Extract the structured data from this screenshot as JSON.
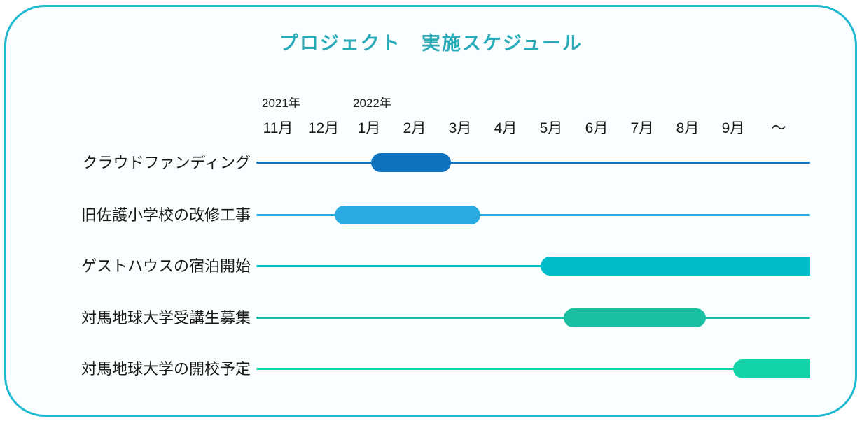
{
  "title": "プロジェクト　実施スケジュール",
  "colors": {
    "card_border": "#1eb9d0",
    "card_background": "#fbfeff",
    "title_text": "#29aab9",
    "axis_text": "#1a1a1a"
  },
  "chart_data": {
    "type": "gantt",
    "title": "プロジェクト　実施スケジュール",
    "months": [
      "11月",
      "12月",
      "1月",
      "2月",
      "3月",
      "4月",
      "5月",
      "6月",
      "7月",
      "8月",
      "9月",
      "～"
    ],
    "years": [
      {
        "label": "2021年",
        "month_index": 0
      },
      {
        "label": "2022年",
        "month_index": 2
      }
    ],
    "axis_note": "month axis runs 2021-11 through 2022-09 then continues (～)",
    "tasks": [
      {
        "label": "クラウドファンディング",
        "color": "#0e72bf",
        "start_month_idx": 2.05,
        "end_month_idx": 3.8,
        "continues": false
      },
      {
        "label": "旧佐護小学校の改修工事",
        "color": "#29abe2",
        "start_month_idx": 1.25,
        "end_month_idx": 4.45,
        "continues": false
      },
      {
        "label": "ゲストハウスの宿泊開始",
        "color": "#00bcc9",
        "start_month_idx": 5.77,
        "end_month_idx": 11.69,
        "continues": true
      },
      {
        "label": "対馬地球大学受講生募集",
        "color": "#1abfa1",
        "start_month_idx": 6.28,
        "end_month_idx": 9.4,
        "continues": false
      },
      {
        "label": "対馬地球大学の開校予定",
        "color": "#13d4a9",
        "start_month_idx": 10.0,
        "end_month_idx": 11.69,
        "continues": true
      }
    ],
    "legend": null,
    "grid": false
  }
}
